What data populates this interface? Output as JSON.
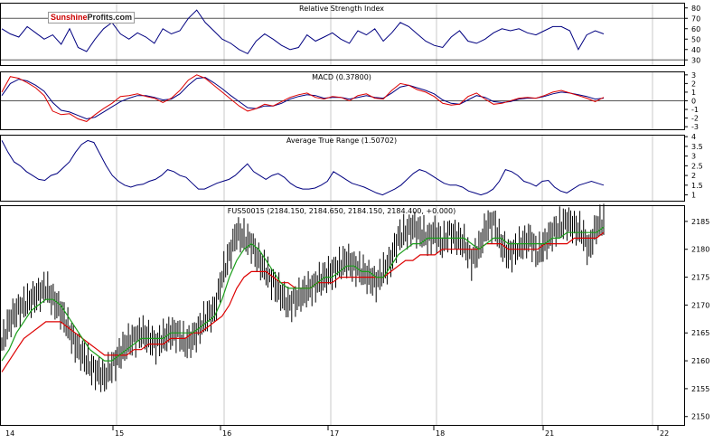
{
  "logo": {
    "part1": "Sunshine",
    "part2": "Profits",
    "part3": ".com"
  },
  "colors": {
    "price": "#000000",
    "ma_fast": "#1a9e1a",
    "ma_slow": "#dd0000",
    "indicator": "#000080",
    "grid": "#c8c8c8",
    "frame": "#000000"
  },
  "x_axis": {
    "labels": [
      "14",
      "15",
      "16",
      "17",
      "18",
      "21",
      "22"
    ]
  },
  "chart_data": [
    {
      "type": "line",
      "title": "Relative Strength Index",
      "y_ticks": [
        80,
        70,
        60,
        50,
        40,
        30
      ],
      "ylim": [
        25,
        85
      ],
      "levels": [
        70,
        30
      ],
      "series": [
        {
          "values": [
            60,
            55,
            52,
            62,
            56,
            50,
            54,
            45,
            60,
            42,
            38,
            50,
            60,
            66,
            55,
            50,
            56,
            52,
            46,
            60,
            55,
            58,
            70,
            78,
            66,
            58,
            50,
            46,
            40,
            36,
            48,
            55,
            50,
            44,
            40,
            42,
            54,
            48,
            52,
            56,
            50,
            46,
            58,
            54,
            60,
            48,
            56,
            66,
            62,
            55,
            48,
            44,
            42,
            52,
            58,
            48,
            46,
            50,
            56,
            60,
            58,
            60,
            56,
            54,
            58,
            62,
            62,
            58,
            40,
            54,
            58,
            55
          ]
        }
      ]
    },
    {
      "type": "line",
      "title": "MACD (0.37800)",
      "y_ticks": [
        3,
        2,
        1,
        0,
        -1,
        -2,
        -3
      ],
      "ylim": [
        -3.3,
        3.4
      ],
      "series": [
        {
          "values": [
            1.0,
            2.8,
            2.6,
            2.1,
            1.5,
            0.6,
            -1.2,
            -1.6,
            -1.5,
            -2.1,
            -2.4,
            -1.6,
            -0.9,
            -0.3,
            0.5,
            0.6,
            0.8,
            0.5,
            0.3,
            -0.2,
            0.3,
            1.2,
            2.4,
            3.0,
            2.6,
            1.8,
            1.0,
            0.2,
            -0.6,
            -1.2,
            -0.9,
            -0.4,
            -0.6,
            -0.1,
            0.4,
            0.7,
            0.9,
            0.4,
            0.2,
            0.5,
            0.4,
            0.0,
            0.6,
            0.8,
            0.3,
            0.2,
            1.2,
            2.0,
            1.8,
            1.3,
            1.0,
            0.5,
            -0.3,
            -0.5,
            -0.4,
            0.5,
            0.9,
            0.2,
            -0.4,
            -0.3,
            0.0,
            0.3,
            0.4,
            0.3,
            0.6,
            1.0,
            1.2,
            0.9,
            0.6,
            0.3,
            -0.1,
            0.4
          ]
        },
        {
          "values": [
            0.6,
            2.0,
            2.5,
            2.3,
            1.8,
            1.1,
            -0.2,
            -1.1,
            -1.3,
            -1.7,
            -2.1,
            -1.9,
            -1.3,
            -0.7,
            -0.1,
            0.3,
            0.6,
            0.6,
            0.4,
            0.1,
            0.2,
            0.8,
            1.8,
            2.6,
            2.7,
            2.1,
            1.4,
            0.6,
            -0.1,
            -0.8,
            -0.9,
            -0.6,
            -0.6,
            -0.3,
            0.2,
            0.5,
            0.7,
            0.6,
            0.3,
            0.4,
            0.4,
            0.2,
            0.4,
            0.6,
            0.4,
            0.3,
            0.9,
            1.6,
            1.8,
            1.5,
            1.2,
            0.8,
            0.1,
            -0.3,
            -0.4,
            0.1,
            0.6,
            0.4,
            -0.1,
            -0.2,
            -0.1,
            0.2,
            0.3,
            0.3,
            0.5,
            0.8,
            1.0,
            0.9,
            0.7,
            0.5,
            0.2,
            0.3
          ]
        }
      ]
    },
    {
      "type": "line",
      "title": "Average True Range (1.50702)",
      "y_ticks": [
        4.0,
        3.5,
        3.0,
        2.5,
        2.0,
        1.5,
        1.0
      ],
      "ylim": [
        0.7,
        4.1
      ],
      "series": [
        {
          "values": [
            3.8,
            3.2,
            2.7,
            2.5,
            2.2,
            2.0,
            1.8,
            1.75,
            2.0,
            2.1,
            2.4,
            2.7,
            3.2,
            3.6,
            3.8,
            3.7,
            3.1,
            2.5,
            2.0,
            1.7,
            1.5,
            1.4,
            1.5,
            1.55,
            1.7,
            1.8,
            2.0,
            2.3,
            2.2,
            2.0,
            1.9,
            1.6,
            1.3,
            1.3,
            1.45,
            1.6,
            1.7,
            1.8,
            2.0,
            2.3,
            2.6,
            2.2,
            2.0,
            1.8,
            2.0,
            2.1,
            1.9,
            1.6,
            1.4,
            1.3,
            1.3,
            1.35,
            1.5,
            1.7,
            2.2,
            2.0,
            1.8,
            1.6,
            1.5,
            1.4,
            1.25,
            1.1,
            1.0,
            1.15,
            1.3,
            1.5,
            1.8,
            2.1,
            2.3,
            2.2,
            2.0,
            1.8,
            1.6,
            1.5,
            1.5,
            1.4,
            1.2,
            1.1,
            1.0,
            1.1,
            1.3,
            1.7,
            2.3,
            2.2,
            2.0,
            1.7,
            1.6,
            1.45,
            1.7,
            1.75,
            1.4,
            1.2,
            1.1,
            1.3,
            1.5,
            1.6,
            1.7,
            1.6,
            1.5
          ]
        }
      ]
    },
    {
      "type": "line",
      "title": "FUS50015 (2184.150, 2184.650, 2184.150, 2184.400, +0.000)",
      "y_ticks": [
        2185,
        2180,
        2175,
        2170,
        2165,
        2160,
        2155,
        2150
      ],
      "ylim": [
        2148.5,
        2187.9
      ],
      "series": [
        {
          "values": [
            2163,
            2167,
            2169,
            2170,
            2171,
            2172,
            2173,
            2171,
            2169,
            2166,
            2163,
            2161,
            2159,
            2158,
            2157,
            2159,
            2161,
            2163,
            2164,
            2165,
            2164,
            2163,
            2164,
            2165,
            2165,
            2163,
            2164,
            2166,
            2168,
            2169,
            2175,
            2179,
            2183,
            2182,
            2181,
            2178,
            2176,
            2174,
            2172,
            2170,
            2171,
            2172,
            2173,
            2174,
            2175,
            2176,
            2177,
            2178,
            2177,
            2176,
            2175,
            2174,
            2176,
            2178,
            2182,
            2183,
            2184,
            2183,
            2182,
            2183,
            2181,
            2183,
            2182,
            2181,
            2178,
            2180,
            2184,
            2185,
            2181,
            2179,
            2180,
            2181,
            2182,
            2179,
            2181,
            2183,
            2184,
            2185,
            2184,
            2183,
            2180,
            2184,
            2185
          ]
        },
        {
          "values": [
            2160,
            2162,
            2165,
            2167,
            2169,
            2170,
            2171,
            2171,
            2170,
            2168,
            2166,
            2164,
            2162,
            2161,
            2160,
            2160,
            2161,
            2162,
            2163,
            2164,
            2164,
            2164,
            2164,
            2165,
            2165,
            2165,
            2165,
            2166,
            2167,
            2168,
            2171,
            2175,
            2178,
            2180,
            2181,
            2180,
            2178,
            2176,
            2174,
            2173,
            2173,
            2173,
            2173,
            2174,
            2175,
            2175,
            2176,
            2177,
            2177,
            2176,
            2176,
            2175,
            2175,
            2177,
            2179,
            2180,
            2181,
            2181,
            2182,
            2182,
            2182,
            2182,
            2182,
            2182,
            2181,
            2180,
            2181,
            2182,
            2182,
            2181,
            2181,
            2181,
            2181,
            2181,
            2181,
            2182,
            2182,
            2183,
            2183,
            2183,
            2183,
            2183,
            2184
          ]
        },
        {
          "values": [
            2158,
            2160,
            2162,
            2164,
            2165,
            2166,
            2167,
            2167,
            2167,
            2166,
            2165,
            2164,
            2163,
            2162,
            2161,
            2161,
            2161,
            2161,
            2162,
            2162,
            2163,
            2163,
            2163,
            2164,
            2164,
            2164,
            2165,
            2165,
            2166,
            2167,
            2168,
            2170,
            2173,
            2175,
            2176,
            2176,
            2176,
            2175,
            2174,
            2174,
            2173,
            2173,
            2173,
            2174,
            2174,
            2174,
            2175,
            2175,
            2175,
            2175,
            2175,
            2175,
            2175,
            2176,
            2177,
            2178,
            2178,
            2179,
            2179,
            2179,
            2180,
            2180,
            2180,
            2180,
            2180,
            2180,
            2181,
            2181,
            2181,
            2180,
            2180,
            2180,
            2180,
            2180,
            2181,
            2181,
            2181,
            2181,
            2182,
            2182,
            2182,
            2182,
            2183
          ]
        }
      ]
    }
  ]
}
